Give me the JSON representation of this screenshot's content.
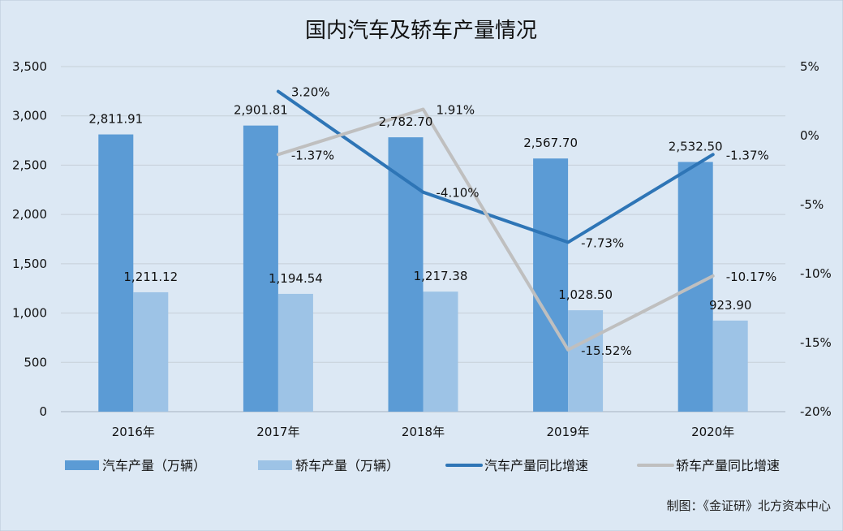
{
  "title": "国内汽车及轿车产量情况",
  "credit": "制图：《金证研》北方资本中心",
  "colors": {
    "background": "#dce8f4",
    "auto_bar": "#5b9bd5",
    "sedan_bar": "#9dc3e6",
    "auto_line": "#2e75b6",
    "sedan_line": "#bfbfbf",
    "grid": "#c6cfd8"
  },
  "chart_data": {
    "type": "bar",
    "categories": [
      "2016年",
      "2017年",
      "2018年",
      "2019年",
      "2020年"
    ],
    "series": [
      {
        "name": "汽车产量（万辆）",
        "type": "bar",
        "axis": "left",
        "values": [
          2811.91,
          2901.81,
          2782.7,
          2567.7,
          2532.5
        ],
        "labels": [
          "2,811.91",
          "2,901.81",
          "2,782.70",
          "2,567.70",
          "2,532.50"
        ]
      },
      {
        "name": "轿车产量（万辆）",
        "type": "bar",
        "axis": "left",
        "values": [
          1211.12,
          1194.54,
          1217.38,
          1028.5,
          923.9
        ],
        "labels": [
          "1,211.12",
          "1,194.54",
          "1,217.38",
          "1,028.50",
          "923.90"
        ]
      },
      {
        "name": "汽车产量同比增速",
        "type": "line",
        "axis": "right",
        "values": [
          null,
          3.2,
          -4.1,
          -7.73,
          -1.37
        ],
        "labels": [
          "",
          "3.20%",
          "-4.10%",
          "-7.73%",
          "-1.37%"
        ]
      },
      {
        "name": "轿车产量同比增速",
        "type": "line",
        "axis": "right",
        "values": [
          null,
          -1.37,
          1.91,
          -15.52,
          -10.17
        ],
        "labels": [
          "",
          "-1.37%",
          "1.91%",
          "-15.52%",
          "-10.17%"
        ]
      }
    ],
    "y_left": {
      "range": [
        0,
        3500
      ],
      "ticks": [
        0,
        500,
        1000,
        1500,
        2000,
        2500,
        3000,
        3500
      ],
      "tick_labels": [
        "0",
        "500",
        "1,000",
        "1,500",
        "2,000",
        "2,500",
        "3,000",
        "3,500"
      ]
    },
    "y_right": {
      "range": [
        -20,
        5
      ],
      "ticks": [
        -20,
        -15,
        -10,
        -5,
        0,
        5
      ],
      "tick_labels": [
        "-20%",
        "-15%",
        "-10%",
        "-5%",
        "0%",
        "5%"
      ]
    },
    "grid": true,
    "legend_position": "bottom"
  }
}
